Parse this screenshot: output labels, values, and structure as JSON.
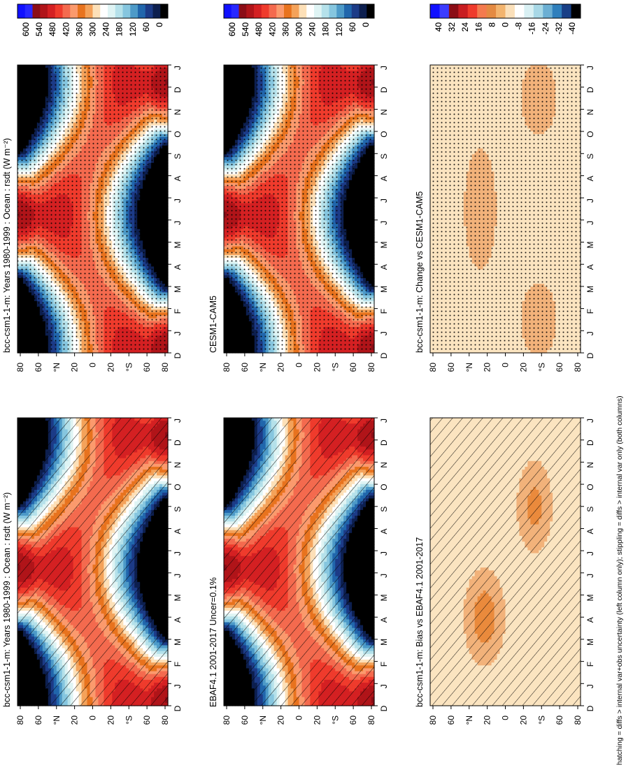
{
  "figure": {
    "footer": "hatching = diffs > internal var+obs uncertainty (left column only); stippling = diffs > internal var only (both columns)",
    "month_labels": [
      "D",
      "J",
      "F",
      "M",
      "A",
      "M",
      "J",
      "J",
      "A",
      "S",
      "O",
      "N",
      "D",
      "J"
    ],
    "lat_labels": [
      "80",
      "60",
      "°N",
      "20",
      "0",
      "20",
      "°S",
      "60",
      "80"
    ]
  },
  "chart_data": [
    {
      "type": "heatmap",
      "title": "bcc-csm1-1-m: Years 1980-1999 : Ocean : rsdt (W m⁻²)",
      "colorbar": [
        "600",
        "540",
        "480",
        "420",
        "360",
        "300",
        "240",
        "180",
        "120",
        "60",
        "0"
      ],
      "scale": "abs",
      "overlay": "hatch"
    },
    {
      "type": "heatmap",
      "title": "bcc-csm1-1-m: Years 1980-1999 : Ocean : rsdt (W m⁻²)",
      "colorbar": [
        "600",
        "540",
        "480",
        "420",
        "360",
        "300",
        "240",
        "180",
        "120",
        "60",
        "0"
      ],
      "scale": "abs",
      "overlay": "stipple"
    },
    {
      "type": "heatmap",
      "title": "EBAF4.1 2001-2017 Uncer=0.1%",
      "colorbar": [
        "600",
        "540",
        "480",
        "420",
        "360",
        "300",
        "240",
        "180",
        "120",
        "60",
        "0"
      ],
      "scale": "abs",
      "overlay": "hatch"
    },
    {
      "type": "heatmap",
      "title": "CESM1-CAM5",
      "colorbar": [
        "600",
        "540",
        "480",
        "420",
        "360",
        "300",
        "240",
        "180",
        "120",
        "60",
        "0"
      ],
      "scale": "abs",
      "overlay": "stipple"
    },
    {
      "type": "heatmap",
      "title": "bcc-csm1-1-m: Bias vs EBAF4.1 2001-2017",
      "colorbar": [
        "40",
        "32",
        "24",
        "16",
        "8",
        "0",
        "-8",
        "-16",
        "-24",
        "-32",
        "-40"
      ],
      "scale": "diff",
      "overlay": "hatch"
    },
    {
      "type": "heatmap",
      "title": "bcc-csm1-1-m: Change vs CESM1-CAM5",
      "colorbar": [
        "40",
        "32",
        "24",
        "16",
        "8",
        "0",
        "-8",
        "-16",
        "-24",
        "-32",
        "-40"
      ],
      "scale": "diff",
      "overlay": "stipple"
    }
  ],
  "colors": {
    "abs": [
      "#1010ff",
      "#2828ff",
      "#8b0d16",
      "#b01419",
      "#d42022",
      "#ef3b2c",
      "#f46a4e",
      "#fb9a6d",
      "#e8731e",
      "#f4a25a",
      "#fde0b8",
      "#ffffff",
      "#dff4f4",
      "#b5e1ea",
      "#86c6df",
      "#4d9ac8",
      "#2166ac",
      "#1c3b87",
      "#0d1f4f",
      "#000000"
    ],
    "diff": [
      "#1010ff",
      "#3c3cff",
      "#8b0d16",
      "#c81d21",
      "#ef3b2c",
      "#f47a4e",
      "#e48a42",
      "#f3b46e",
      "#fbe0ba",
      "#ffffff",
      "#d9f0f3",
      "#a8d8e6",
      "#6bafd3",
      "#2f7fbc",
      "#183f86",
      "#000000"
    ],
    "bias_base": "#fbe4c0",
    "bias_patch": "#f2b27a",
    "bias_dark": "#ea8a3c"
  }
}
